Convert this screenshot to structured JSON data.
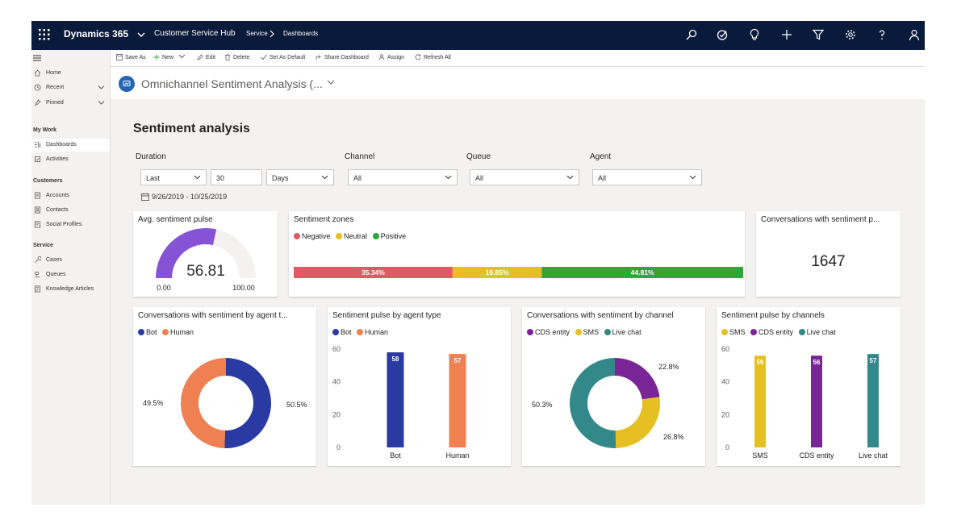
{
  "topbar": {
    "brand": "Dynamics 365",
    "app_name": "Customer Service Hub",
    "breadcrumb": [
      "Service",
      "Dashboards"
    ]
  },
  "sitemap": {
    "home": "Home",
    "recent": "Recent",
    "pinned": "Pinned",
    "groups": [
      {
        "title": "My Work",
        "items": [
          "Dashboards",
          "Activities"
        ]
      },
      {
        "title": "Customers",
        "items": [
          "Accounts",
          "Contacts",
          "Social Profiles"
        ]
      },
      {
        "title": "Service",
        "items": [
          "Cases",
          "Queues",
          "Knowledge Articles"
        ]
      }
    ],
    "selected": "Dashboards"
  },
  "commandbar": [
    "Save As",
    "New",
    "Edit",
    "Delete",
    "Set As Default",
    "Share Dashboard",
    "Assign",
    "Refresh All"
  ],
  "page": {
    "title": "Omnichannel Sentiment Analysis (...",
    "heading": "Sentiment analysis"
  },
  "filters": {
    "duration_label": "Duration",
    "duration_mode": "Last",
    "duration_value": "30",
    "duration_unit": "Days",
    "channel_label": "Channel",
    "channel_value": "All",
    "queue_label": "Queue",
    "queue_value": "All",
    "agent_label": "Agent",
    "agent_value": "All",
    "date_range": "9/26/2019 - 10/25/2019"
  },
  "colors": {
    "negative": "#e05a66",
    "neutral": "#e6c023",
    "positive": "#2ea83a",
    "bot": "#2a3aa3",
    "human": "#ee8052",
    "cds": "#7a2597",
    "sms": "#e6c023",
    "livechat": "#33898a",
    "gauge": "#8653d6"
  },
  "cards": {
    "avg_pulse": {
      "title": "Avg. sentiment pulse",
      "value": "56.81",
      "min": "0.00",
      "max": "100.00"
    },
    "zones": {
      "title": "Sentiment zones",
      "legend": [
        "Negative",
        "Neutral",
        "Positive"
      ],
      "labels": [
        "35.34%",
        "19.85%",
        "44.81%"
      ]
    },
    "conversations": {
      "title": "Conversations with sentiment p...",
      "value": "1647"
    },
    "by_agent_type_conv": {
      "title": "Conversations with sentiment by agent t...",
      "legend": [
        "Bot",
        "Human"
      ],
      "labels": [
        "50.5%",
        "49.5%"
      ]
    },
    "pulse_by_agent_type": {
      "title": "Sentiment pulse by agent type",
      "legend": [
        "Bot",
        "Human"
      ]
    },
    "conv_by_channel": {
      "title": "Conversations with sentiment by channel",
      "legend": [
        "CDS entity",
        "SMS",
        "Live chat"
      ],
      "labels": [
        "22.8%",
        "26.8%",
        "50.3%"
      ]
    },
    "pulse_by_channel": {
      "title": "Sentiment pulse by channels",
      "legend": [
        "SMS",
        "CDS entity",
        "Live chat"
      ]
    }
  },
  "chart_data": [
    {
      "type": "pie",
      "title": "Avg. sentiment pulse",
      "value": 56.81,
      "min": 0,
      "max": 100
    },
    {
      "type": "bar",
      "title": "Sentiment zones",
      "categories": [
        "Negative",
        "Neutral",
        "Positive"
      ],
      "values": [
        35.34,
        19.85,
        44.81
      ]
    },
    {
      "type": "pie",
      "title": "Conversations with sentiment by agent t...",
      "categories": [
        "Bot",
        "Human"
      ],
      "values": [
        50.5,
        49.5
      ]
    },
    {
      "type": "bar",
      "title": "Sentiment pulse by agent type",
      "categories": [
        "Bot",
        "Human"
      ],
      "values": [
        58,
        57
      ],
      "ylim": [
        0,
        60
      ],
      "yticks": [
        0,
        20,
        40,
        60
      ]
    },
    {
      "type": "pie",
      "title": "Conversations with sentiment by channel",
      "categories": [
        "CDS entity",
        "SMS",
        "Live chat"
      ],
      "values": [
        22.8,
        26.8,
        50.3
      ]
    },
    {
      "type": "bar",
      "title": "Sentiment pulse by channels",
      "categories": [
        "SMS",
        "CDS entity",
        "Live chat"
      ],
      "values": [
        56,
        56,
        57
      ],
      "ylim": [
        0,
        60
      ],
      "yticks": [
        0,
        20,
        40,
        60
      ]
    }
  ]
}
